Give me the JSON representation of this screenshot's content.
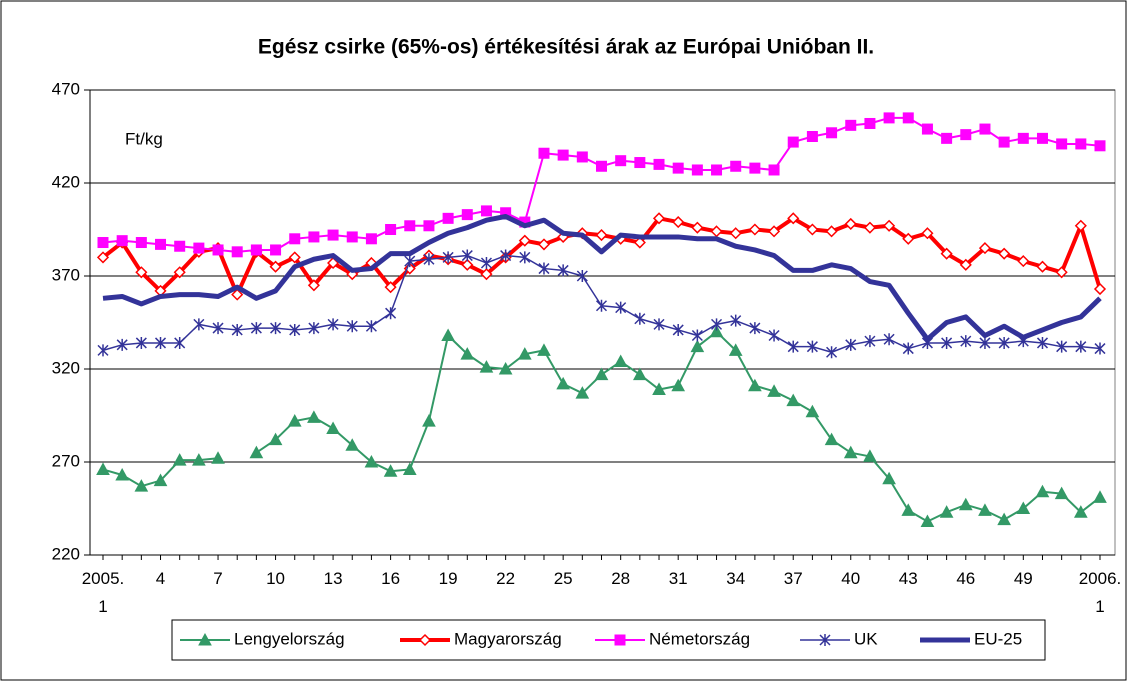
{
  "chart_data": {
    "type": "line",
    "title": "Egész csirke (65%-os) értékesítési árak az Európai Unióban II.",
    "annotation": "Ft/kg",
    "categories": [
      "2005.\n1",
      null,
      null,
      "4",
      null,
      null,
      "7",
      null,
      null,
      "10",
      null,
      null,
      "13",
      null,
      null,
      "16",
      null,
      null,
      "19",
      null,
      null,
      "22",
      null,
      null,
      "25",
      null,
      null,
      "28",
      null,
      null,
      "31",
      null,
      null,
      "34",
      null,
      null,
      "37",
      null,
      null,
      "40",
      null,
      null,
      "43",
      null,
      null,
      "46",
      null,
      null,
      "49",
      null,
      null,
      null,
      "2006.\n1"
    ],
    "ylim": [
      220,
      470
    ],
    "yticks": [
      220,
      270,
      320,
      370,
      420,
      470
    ],
    "grid": true,
    "legend": "bottom",
    "series": [
      {
        "name": "Lengyelország",
        "color": "#339966",
        "marker": "triangle",
        "line_width": 2,
        "values": [
          266,
          263,
          257,
          260,
          271,
          271,
          272,
          null,
          275,
          282,
          292,
          294,
          288,
          279,
          270,
          265,
          266,
          292,
          338,
          328,
          321,
          320,
          328,
          330,
          312,
          307,
          317,
          324,
          317,
          309,
          311,
          332,
          340,
          330,
          311,
          308,
          303,
          297,
          282,
          275,
          273,
          261,
          244,
          238,
          243,
          247,
          244,
          239,
          245,
          254,
          253,
          243,
          251
        ]
      },
      {
        "name": "Magyarország",
        "color": "#ff0000",
        "marker": "diamond",
        "line_width": 4,
        "values": [
          380,
          388,
          372,
          362,
          372,
          383,
          385,
          360,
          383,
          375,
          380,
          365,
          377,
          371,
          377,
          364,
          374,
          381,
          379,
          376,
          371,
          380,
          389,
          387,
          391,
          393,
          392,
          390,
          388,
          401,
          399,
          396,
          394,
          393,
          395,
          394,
          401,
          395,
          394,
          398,
          396,
          397,
          390,
          393,
          382,
          376,
          385,
          382,
          378,
          375,
          372,
          397,
          363
        ]
      },
      {
        "name": "Németország",
        "color": "#ff00ff",
        "marker": "square",
        "line_width": 2,
        "values": [
          388,
          389,
          388,
          387,
          386,
          385,
          384,
          383,
          384,
          384,
          390,
          391,
          392,
          391,
          390,
          395,
          397,
          397,
          401,
          403,
          405,
          404,
          399,
          436,
          435,
          434,
          429,
          432,
          431,
          430,
          428,
          427,
          427,
          429,
          428,
          427,
          442,
          445,
          447,
          451,
          452,
          455,
          455,
          449,
          444,
          446,
          449,
          442,
          444,
          444,
          441,
          441,
          440
        ]
      },
      {
        "name": "UK",
        "color": "#333399",
        "marker": "asterisk",
        "line_width": 1.5,
        "values": [
          330,
          333,
          334,
          334,
          334,
          344,
          342,
          341,
          342,
          342,
          341,
          342,
          344,
          343,
          343,
          350,
          378,
          379,
          380,
          381,
          377,
          381,
          380,
          374,
          373,
          370,
          354,
          353,
          347,
          344,
          341,
          338,
          344,
          346,
          342,
          338,
          332,
          332,
          329,
          333,
          335,
          336,
          331,
          334,
          334,
          335,
          334,
          334,
          335,
          334,
          332,
          332,
          331
        ]
      },
      {
        "name": "EU-25",
        "color": "#333399",
        "marker": "none",
        "line_width": 5,
        "values": [
          358,
          359,
          355,
          359,
          360,
          360,
          359,
          364,
          358,
          362,
          375,
          379,
          381,
          373,
          374,
          382,
          382,
          388,
          393,
          396,
          400,
          402,
          397,
          400,
          393,
          392,
          383,
          392,
          391,
          391,
          391,
          390,
          390,
          386,
          384,
          381,
          373,
          373,
          376,
          374,
          367,
          365,
          350,
          336,
          345,
          348,
          338,
          343,
          337,
          341,
          345,
          348,
          358
        ]
      }
    ]
  }
}
